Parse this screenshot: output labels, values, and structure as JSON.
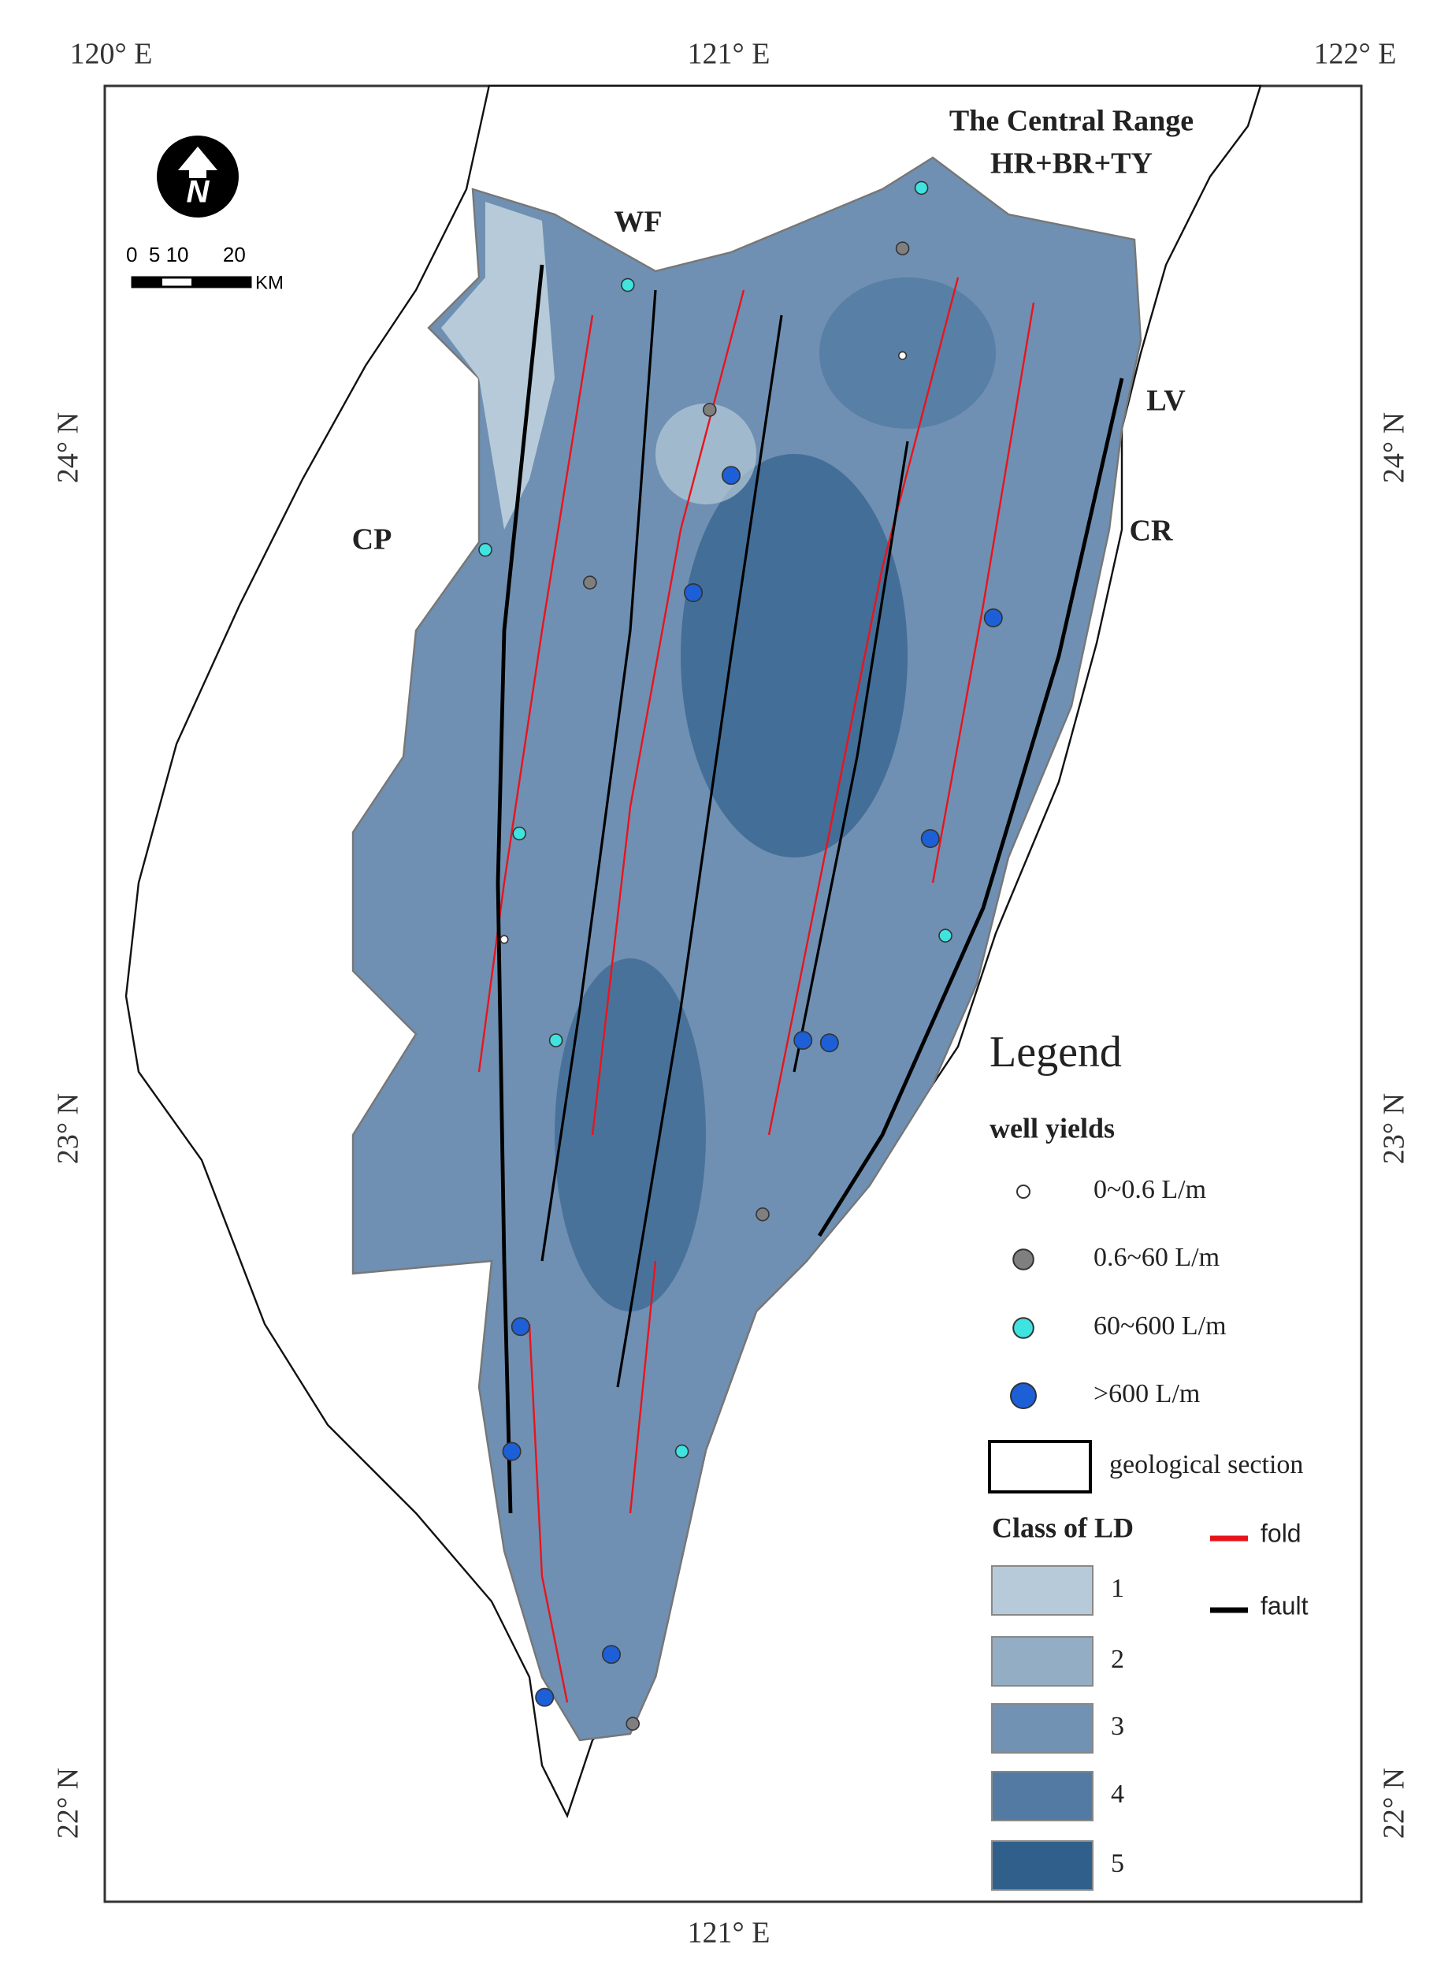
{
  "map": {
    "graticule": {
      "top": [
        "120° E",
        "121° E",
        "122° E"
      ],
      "bottom": [
        "121° E"
      ],
      "left": [
        "24° N",
        "23° N",
        "22° N"
      ],
      "right": [
        "24° N",
        "23° N",
        "22° N"
      ]
    },
    "scale_bar": {
      "ticks": "0  5 10      20",
      "unit": "KM"
    },
    "regions": {
      "central_range": "The Central Range",
      "central_range_units": "HR+BR+TY",
      "wf": "WF",
      "lv": "LV",
      "cp": "CP",
      "cr": "CR"
    },
    "legend": {
      "title": "Legend",
      "well_title": "well yields",
      "wells": [
        {
          "label": "0~0.6 L/m",
          "color": "#ffffff",
          "size": 5
        },
        {
          "label": "0.6~60 L/m",
          "color": "#7f7f7f",
          "size": 8
        },
        {
          "label": "60~600 L/m",
          "color": "#3fe3e0",
          "size": 8
        },
        {
          "label": ">600 L/m",
          "color": "#1d5fd6",
          "size": 10
        }
      ],
      "section": "geological section",
      "class_title": "Class of LD",
      "classes": [
        {
          "label": "1",
          "color": "#b6cad9"
        },
        {
          "label": "2",
          "color": "#93aec4"
        },
        {
          "label": "3",
          "color": "#7192b3"
        },
        {
          "label": "4",
          "color": "#527aa3"
        },
        {
          "label": "5",
          "color": "#315f8c"
        }
      ],
      "fold": {
        "label": "fold",
        "color": "#e8141c"
      },
      "fault": {
        "label": "fault",
        "color": "#000000"
      }
    }
  }
}
